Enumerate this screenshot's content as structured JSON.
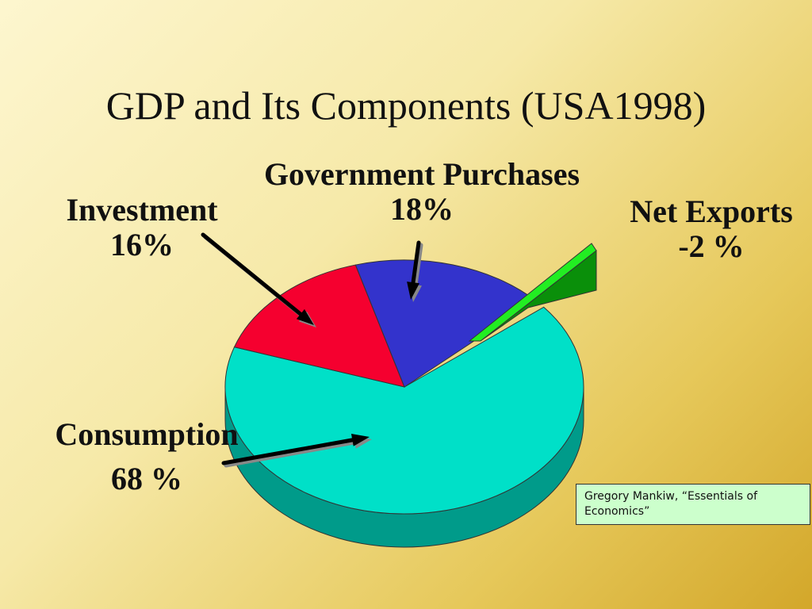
{
  "slide": {
    "title": "GDP and Its Components (USA1998)",
    "source": "Gregory Mankiw,  “Essentials of Economics”"
  },
  "chart_data": {
    "type": "pie",
    "title": "GDP and Its Components (USA1998)",
    "three_d": true,
    "categories": [
      "Consumption",
      "Investment",
      "Government Purchases",
      "Net Exports"
    ],
    "values": [
      68,
      16,
      18,
      -2
    ],
    "labels": [
      {
        "name": "Consumption",
        "value": "68 %"
      },
      {
        "name": "Investment",
        "value": "16%"
      },
      {
        "name": "Government Purchases",
        "value": "18%"
      },
      {
        "name": "Net Exports",
        "value": "-2 %"
      }
    ],
    "colors": {
      "consumption": "#00e0c8",
      "consumption_side": "#009b8a",
      "investment": "#f5002f",
      "government": "#3333cc",
      "net_exports": "#22ee22",
      "net_exports_side": "#0a8f0a"
    }
  }
}
